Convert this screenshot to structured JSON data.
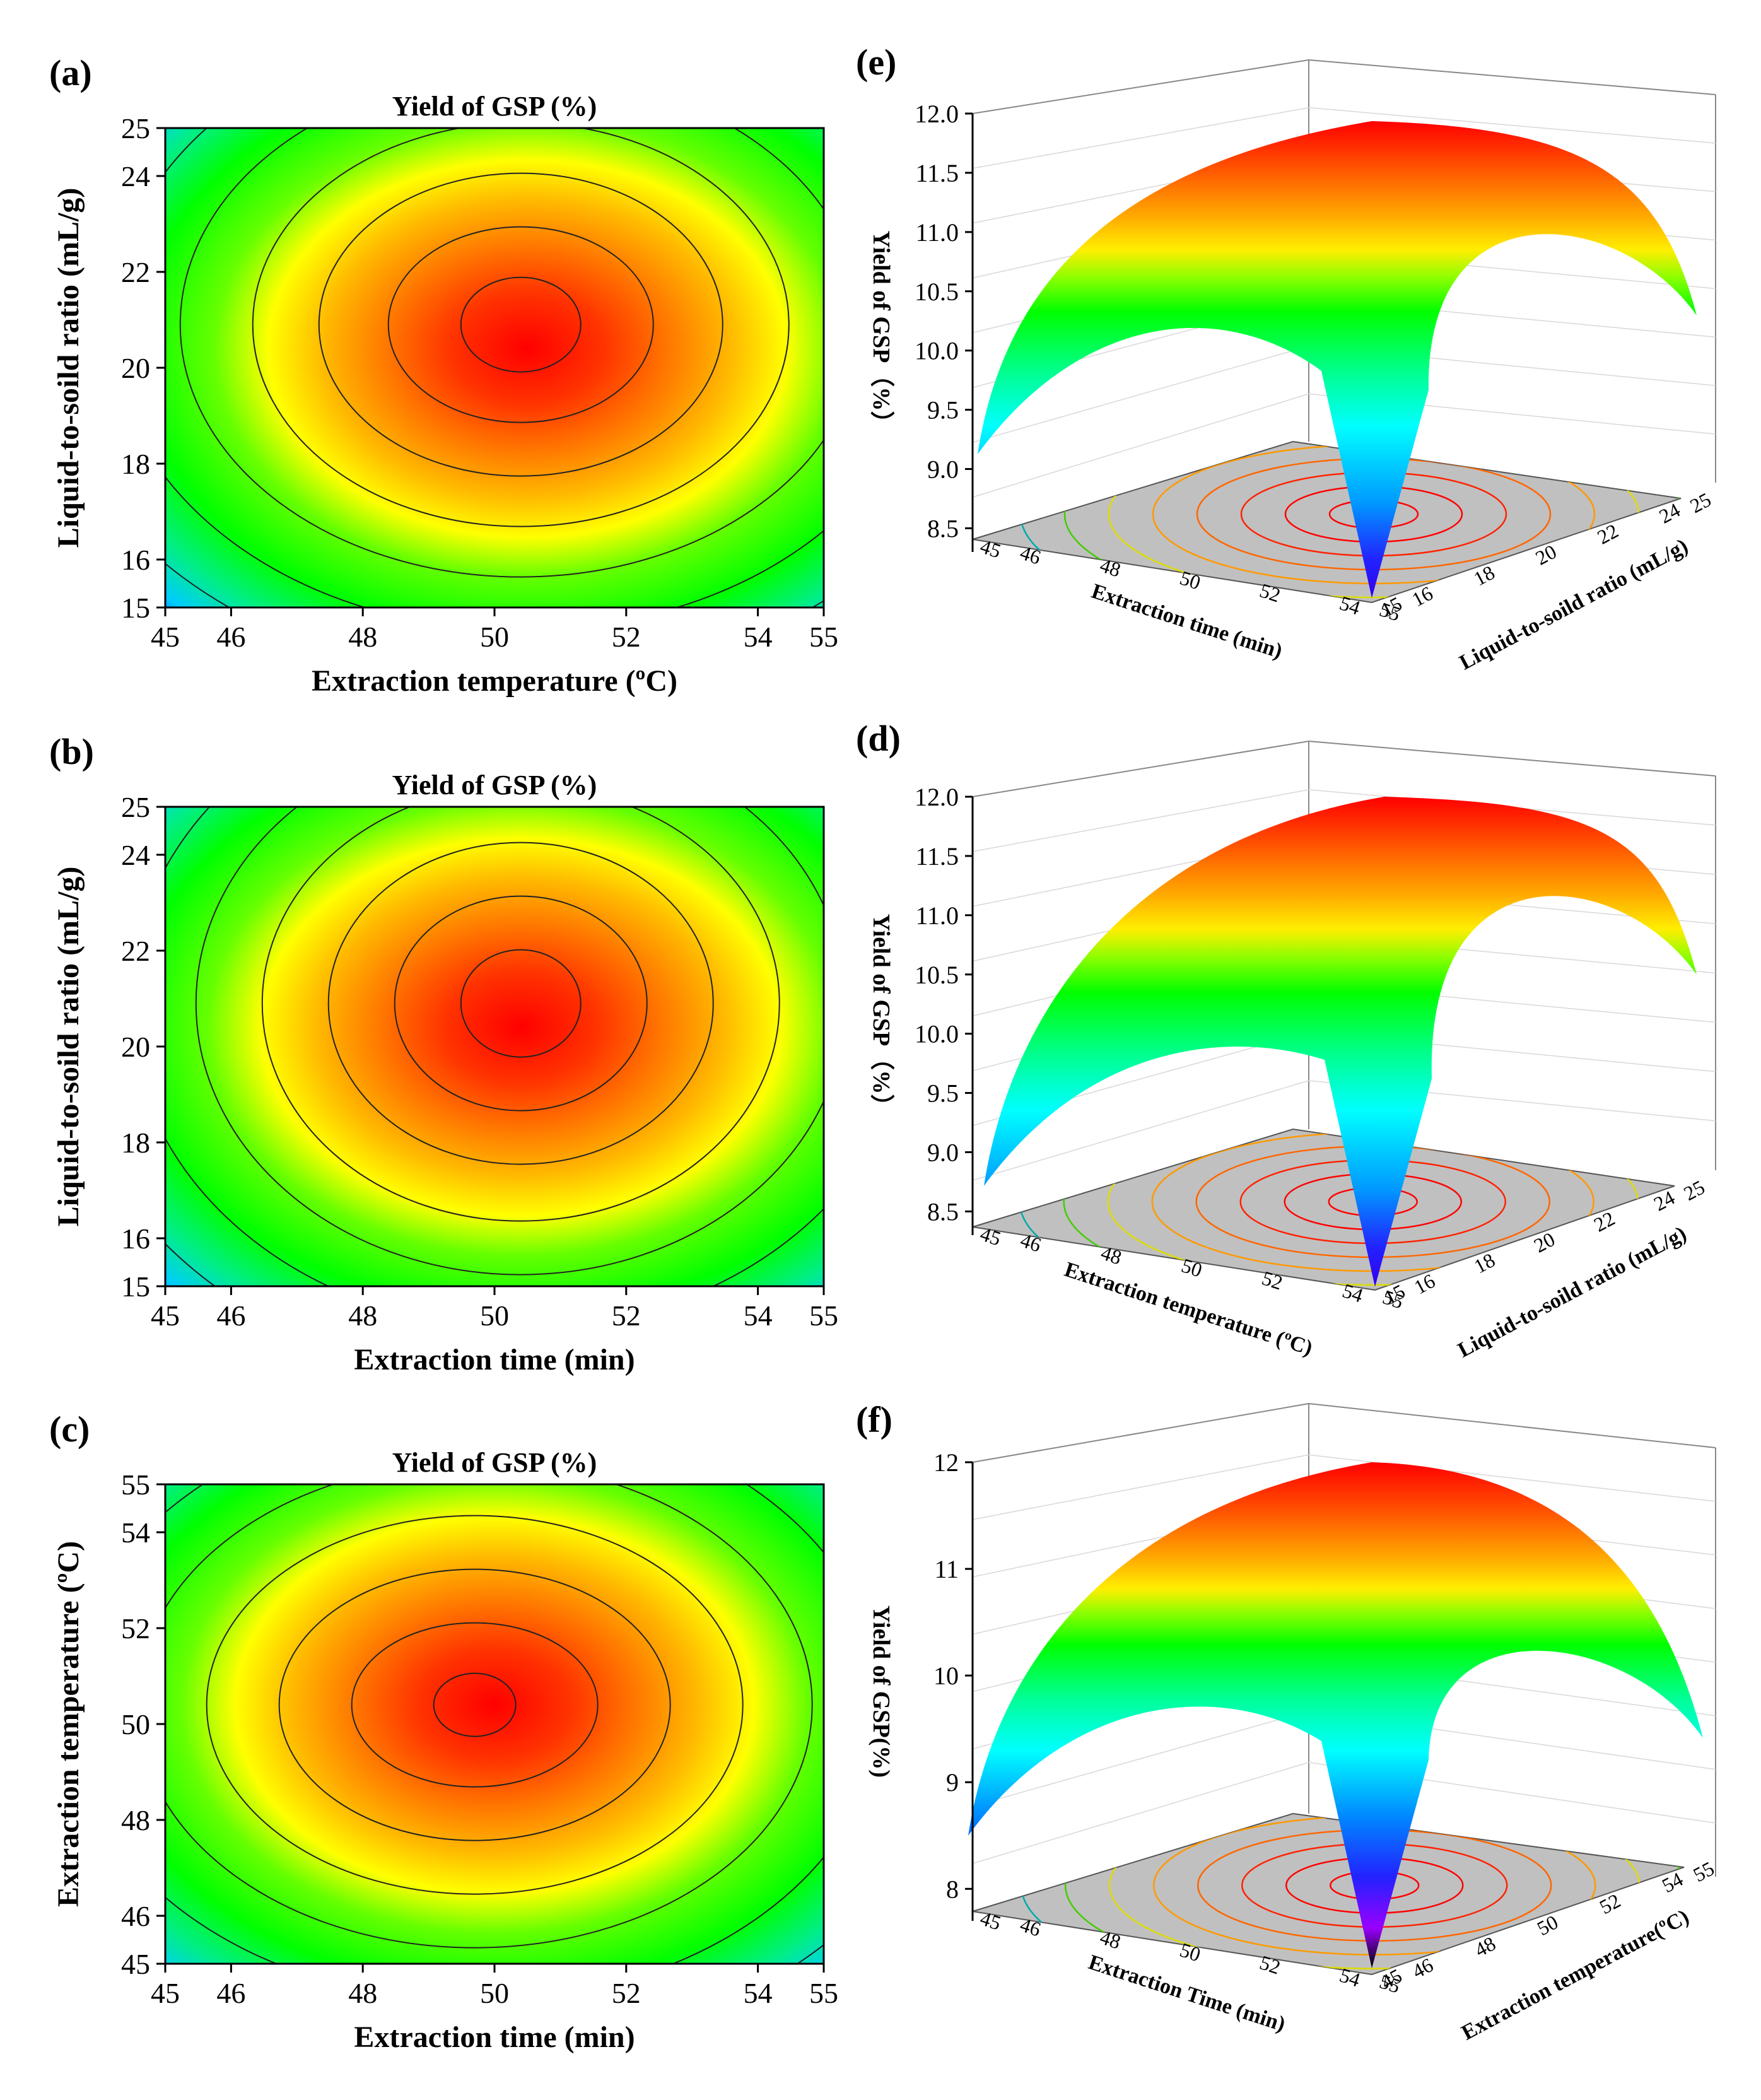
{
  "panels_2d": [
    {
      "label": "(a)",
      "title": "Yield of GSP (%)",
      "xlabel": "Extraction temperature (ºC)",
      "ylabel": "Liquid-to-soild ratio (mL/g)",
      "xticks": [
        "45",
        "46",
        "48",
        "50",
        "52",
        "54",
        "55"
      ],
      "yticks": [
        "15",
        "16",
        "18",
        "20",
        "22",
        "24",
        "25"
      ],
      "xlim": [
        45,
        55
      ],
      "ylim": [
        15,
        25
      ],
      "optimum": [
        50.4,
        20.9
      ]
    },
    {
      "label": "(b)",
      "title": "Yield of GSP (%)",
      "xlabel": "Extraction time (min)",
      "ylabel": "Liquid-to-soild ratio (mL/g)",
      "xticks": [
        "45",
        "46",
        "48",
        "50",
        "52",
        "54",
        "55"
      ],
      "yticks": [
        "15",
        "16",
        "18",
        "20",
        "22",
        "24",
        "25"
      ],
      "xlim": [
        45,
        55
      ],
      "ylim": [
        15,
        25
      ],
      "optimum": [
        50.4,
        20.9
      ]
    },
    {
      "label": "(c)",
      "title": "Yield of GSP (%)",
      "xlabel": "Extraction time (min)",
      "ylabel": "Extraction temperature (ºC)",
      "xticks": [
        "45",
        "46",
        "48",
        "50",
        "52",
        "54",
        "55"
      ],
      "yticks": [
        "45",
        "46",
        "48",
        "50",
        "52",
        "54",
        "55"
      ],
      "xlim": [
        45,
        55
      ],
      "ylim": [
        45,
        55
      ],
      "optimum": [
        49.7,
        50.4
      ]
    }
  ],
  "panels_3d": [
    {
      "label": "(e)",
      "zlabel": "Yield of GSP（%）",
      "zticks": [
        "8.5",
        "9.0",
        "9.5",
        "10.0",
        "10.5",
        "11.0",
        "11.5",
        "12.0"
      ],
      "xlabel": "Extraction time (min)",
      "xticks": [
        "45",
        "46",
        "48",
        "50",
        "52",
        "54",
        "55"
      ],
      "ylabel": "Liquid-to-soild ratio (mL/g)",
      "yticks": [
        "15",
        "16",
        "18",
        "20",
        "22",
        "24",
        "25"
      ]
    },
    {
      "label": "(d)",
      "zlabel": "Yield of GSP（%）",
      "zticks": [
        "8.5",
        "9.0",
        "9.5",
        "10.0",
        "10.5",
        "11.0",
        "11.5",
        "12.0"
      ],
      "xlabel": "Extraction temperature (ºC)",
      "xticks": [
        "45",
        "46",
        "48",
        "50",
        "52",
        "54",
        "55"
      ],
      "ylabel": "Liquid-to-soild ratio (mL/g)",
      "yticks": [
        "15",
        "16",
        "18",
        "20",
        "22",
        "24",
        "25"
      ]
    },
    {
      "label": "(f)",
      "zlabel": "Yield of GSP(%)",
      "zticks": [
        "8",
        "9",
        "10",
        "11",
        "12"
      ],
      "xlabel": "Extraction Time (min)",
      "xticks": [
        "45",
        "46",
        "48",
        "50",
        "52",
        "54",
        "55"
      ],
      "ylabel": "Extraction temperature(ºC)",
      "yticks": [
        "45",
        "46",
        "48",
        "50",
        "52",
        "54",
        "55"
      ]
    }
  ],
  "chart_data": [
    {
      "type": "heatmap",
      "title": "Yield of GSP (%)",
      "xlabel": "Extraction temperature (ºC)",
      "ylabel": "Liquid-to-soild ratio (mL/g)",
      "xlim": [
        45,
        55
      ],
      "ylim": [
        15,
        25
      ],
      "optimum": [
        50.4,
        20.9
      ],
      "peak_value": 11.9
    },
    {
      "type": "heatmap",
      "title": "Yield of GSP (%)",
      "xlabel": "Extraction time (min)",
      "ylabel": "Liquid-to-soild ratio (mL/g)",
      "xlim": [
        45,
        55
      ],
      "ylim": [
        15,
        25
      ],
      "optimum": [
        50.4,
        20.9
      ],
      "peak_value": 11.9
    },
    {
      "type": "heatmap",
      "title": "Yield of GSP (%)",
      "xlabel": "Extraction time (min)",
      "ylabel": "Extraction temperature (ºC)",
      "xlim": [
        45,
        55
      ],
      "ylim": [
        45,
        55
      ],
      "optimum": [
        49.7,
        50.4
      ],
      "peak_value": 11.9
    },
    {
      "type": "surface",
      "zlabel": "Yield of GSP（%）",
      "xlabel": "Extraction time (min)",
      "ylabel": "Liquid-to-soild ratio (mL/g)",
      "zlim": [
        8.3,
        12.0
      ],
      "peak_value": 11.9
    },
    {
      "type": "surface",
      "zlabel": "Yield of GSP（%）",
      "xlabel": "Extraction temperature (ºC)",
      "ylabel": "Liquid-to-soild ratio (mL/g)",
      "zlim": [
        8.3,
        12.0
      ],
      "peak_value": 11.9
    },
    {
      "type": "surface",
      "zlabel": "Yield of GSP(%)",
      "xlabel": "Extraction Time (min)",
      "ylabel": "Extraction temperature(ºC)",
      "zlim": [
        7.7,
        12.0
      ],
      "peak_value": 11.9
    }
  ],
  "colors": {
    "red": "#ff0000",
    "orange": "#ff8000",
    "yellow": "#ffff00",
    "green": "#00ff00",
    "cyan": "#00ffff",
    "blue": "#0000ff",
    "floor": "#c0c0c0"
  }
}
